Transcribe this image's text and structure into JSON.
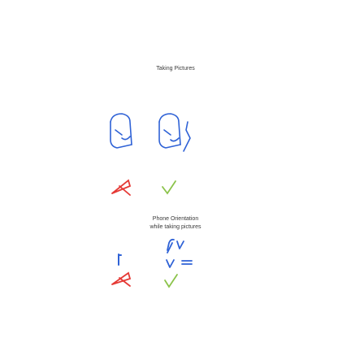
{
  "section1": {
    "title": "Taking Pictures"
  },
  "section2": {
    "title": "Phone Orientation",
    "subtitle": "while taking pictures"
  },
  "colors": {
    "phone_stroke": "#2f62d6",
    "good": "#8bc34a",
    "bad": "#e53935",
    "text": "#3a3a3a"
  },
  "icons": [
    "phone-tilted-icon",
    "phone-flipped-icon",
    "cross-mark-icon",
    "check-mark-icon",
    "rotate-arrows-icon",
    "phone-upright-icon"
  ]
}
